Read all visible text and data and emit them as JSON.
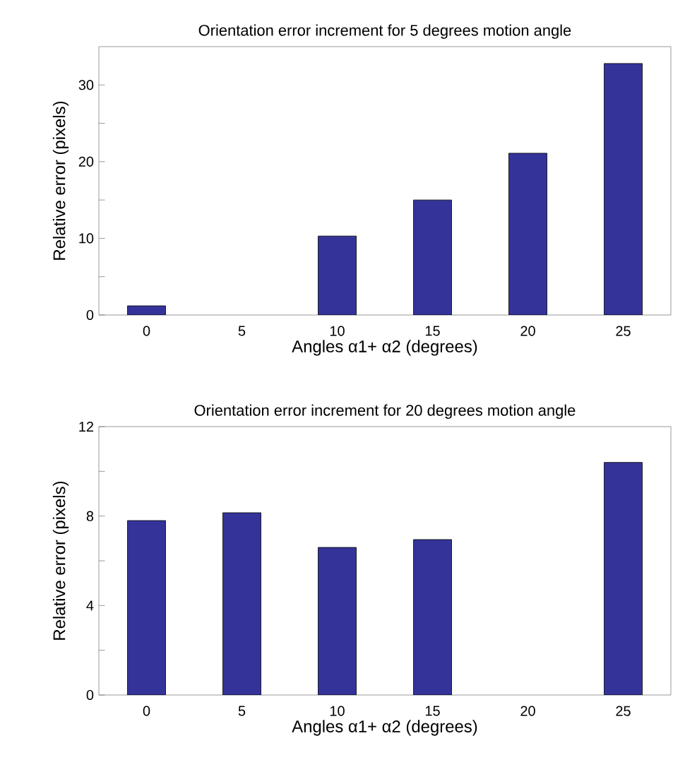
{
  "chart_data": [
    {
      "type": "bar",
      "title": "Orientation error increment for 5 degrees motion angle",
      "xlabel": "Angles α1+ α2 (degrees)",
      "ylabel": "Relative error (pixels)",
      "categories": [
        "0",
        "5",
        "10",
        "15",
        "20",
        "25"
      ],
      "values": [
        1.2,
        null,
        10.3,
        15.0,
        21.1,
        32.8
      ],
      "color": "#333399",
      "ylim": [
        0,
        35
      ],
      "yticks": [
        0,
        {
          "value": 5,
          "label": null
        },
        10,
        {
          "value": 15,
          "label": null
        },
        20,
        {
          "value": 25,
          "label": null
        },
        30
      ]
    },
    {
      "type": "bar",
      "title": "Orientation error increment for 20 degrees motion angle",
      "xlabel": "Angles α1+ α2 (degrees)",
      "ylabel": "Relative error (pixels)",
      "categories": [
        "0",
        "5",
        "10",
        "15",
        "20",
        "25"
      ],
      "values": [
        7.8,
        8.15,
        6.6,
        6.95,
        null,
        10.4
      ],
      "color": "#333399",
      "ylim": [
        0,
        12
      ],
      "yticks": [
        0,
        {
          "value": 2,
          "label": null
        },
        4,
        {
          "value": 6,
          "label": null
        },
        8,
        {
          "value": 10,
          "label": null
        },
        12
      ]
    }
  ]
}
